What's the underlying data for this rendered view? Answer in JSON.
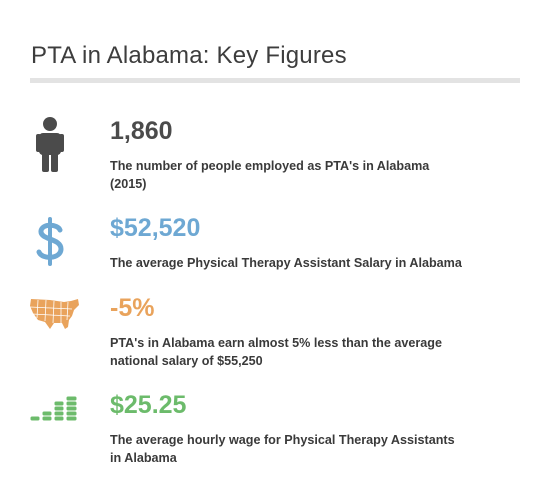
{
  "header": {
    "title": "PTA in Alabama: Key Figures"
  },
  "items": [
    {
      "value": "1,860",
      "description": [
        "The number of people employed as PTA's in Alabama",
        "(2015)"
      ]
    },
    {
      "value": "$52,520",
      "description": [
        "The average Physical Therapy Assistant Salary in Alabama"
      ]
    },
    {
      "value": "-5%",
      "description": [
        "PTA's in Alabama earn almost 5% less than the average",
        "national salary of $55,250"
      ]
    },
    {
      "value": "$25.25",
      "description": [
        "The average hourly wage for Physical Therapy Assistants",
        "in Alabama"
      ]
    }
  ]
}
